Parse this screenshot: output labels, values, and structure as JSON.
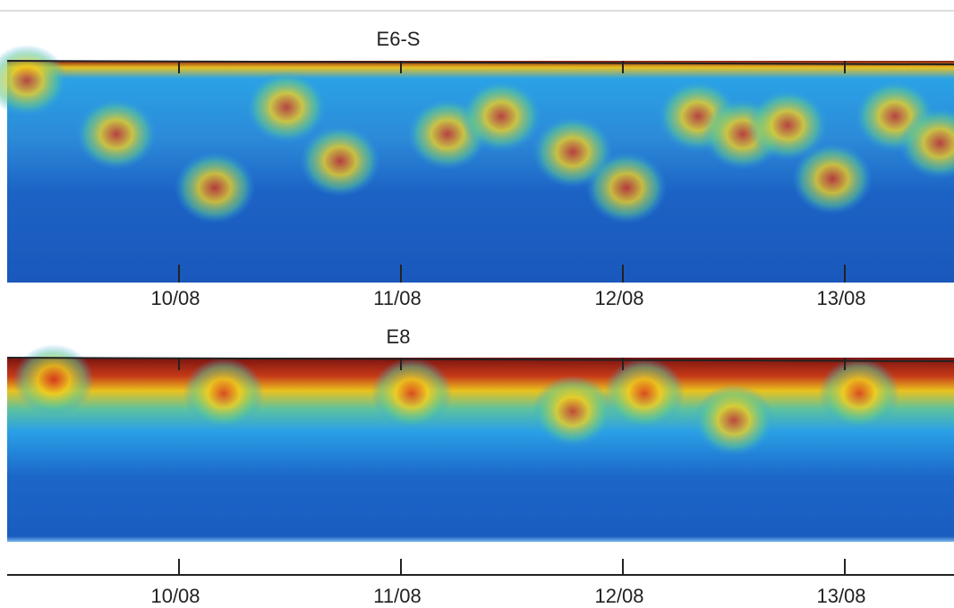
{
  "chart_data": [
    {
      "type": "heatmap",
      "title": "E6-S",
      "categories": [
        "10/08",
        "11/08",
        "12/08",
        "13/08"
      ]
    },
    {
      "type": "heatmap",
      "title": "E8",
      "categories": [
        "10/08",
        "11/08",
        "12/08",
        "13/08"
      ]
    }
  ]
}
